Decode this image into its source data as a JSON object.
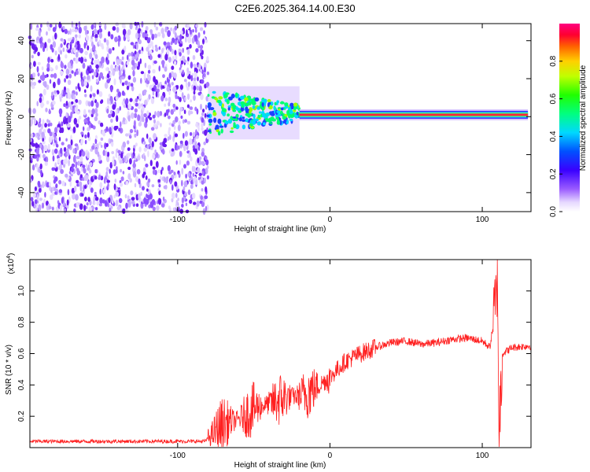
{
  "title": "C2E6.2025.364.14.00.E30",
  "chart_data": [
    {
      "type": "heatmap",
      "name": "spectrogram",
      "xlabel": "Height of straight line (km)",
      "ylabel": "Frequency (Hz)",
      "xlim": [
        -197,
        132
      ],
      "ylim": [
        -50,
        49
      ],
      "xticks": [
        -100,
        0,
        100
      ],
      "xtick_labels": [
        "-100",
        "0",
        "100"
      ],
      "yticks": [
        -40,
        -20,
        0,
        20,
        40
      ],
      "ytick_labels": [
        "-40",
        "-20",
        "0",
        "20",
        "40"
      ],
      "colorbar": {
        "label": "Normalized spectral amplitude",
        "range": [
          0,
          1
        ],
        "ticks": [
          0.0,
          0.2,
          0.4,
          0.6,
          0.8
        ],
        "tick_labels": [
          "0.0",
          "0.2",
          "0.4",
          "0.6",
          "0.8"
        ]
      },
      "regions": [
        {
          "x_range": [
            -197,
            -80
          ],
          "description": "broadband noise, low amplitude speckle",
          "amplitude": 0.12
        },
        {
          "x_range": [
            -80,
            -20
          ],
          "freq_center": 2,
          "freq_width": 10,
          "amplitude": 0.45
        },
        {
          "x_range": [
            -20,
            130
          ],
          "freq_center": 1,
          "freq_width": 3,
          "amplitude": 0.95
        }
      ]
    },
    {
      "type": "line",
      "name": "snr",
      "xlabel": "Height of straight line (km)",
      "ylabel": "SNR (10 * v/v)",
      "exponent_label": "(x10",
      "exponent_power": "4",
      "exponent_close": ")",
      "xlim": [
        -197,
        132
      ],
      "ylim": [
        0,
        1.2
      ],
      "xticks": [
        -100,
        0,
        100
      ],
      "xtick_labels": [
        "-100",
        "0",
        "100"
      ],
      "yticks": [
        0.2,
        0.4,
        0.6,
        0.8,
        1.0
      ],
      "ytick_labels": [
        "0.2",
        "0.4",
        "0.6",
        "0.8",
        "1.0"
      ],
      "series": [
        {
          "name": "SNR",
          "color": "#ff2020",
          "x": [
            -197,
            -150,
            -100,
            -82,
            -78,
            -70,
            -60,
            -50,
            -40,
            -30,
            -20,
            -10,
            0,
            10,
            20,
            30,
            40,
            50,
            60,
            70,
            80,
            90,
            100,
            105,
            109,
            110,
            111,
            113,
            120,
            132
          ],
          "y": [
            0.04,
            0.04,
            0.04,
            0.04,
            0.08,
            0.15,
            0.18,
            0.25,
            0.28,
            0.32,
            0.33,
            0.38,
            0.45,
            0.55,
            0.6,
            0.64,
            0.67,
            0.68,
            0.66,
            0.67,
            0.69,
            0.7,
            0.68,
            0.64,
            0.9,
            1.2,
            0.05,
            0.6,
            0.64,
            0.65
          ]
        }
      ]
    }
  ]
}
